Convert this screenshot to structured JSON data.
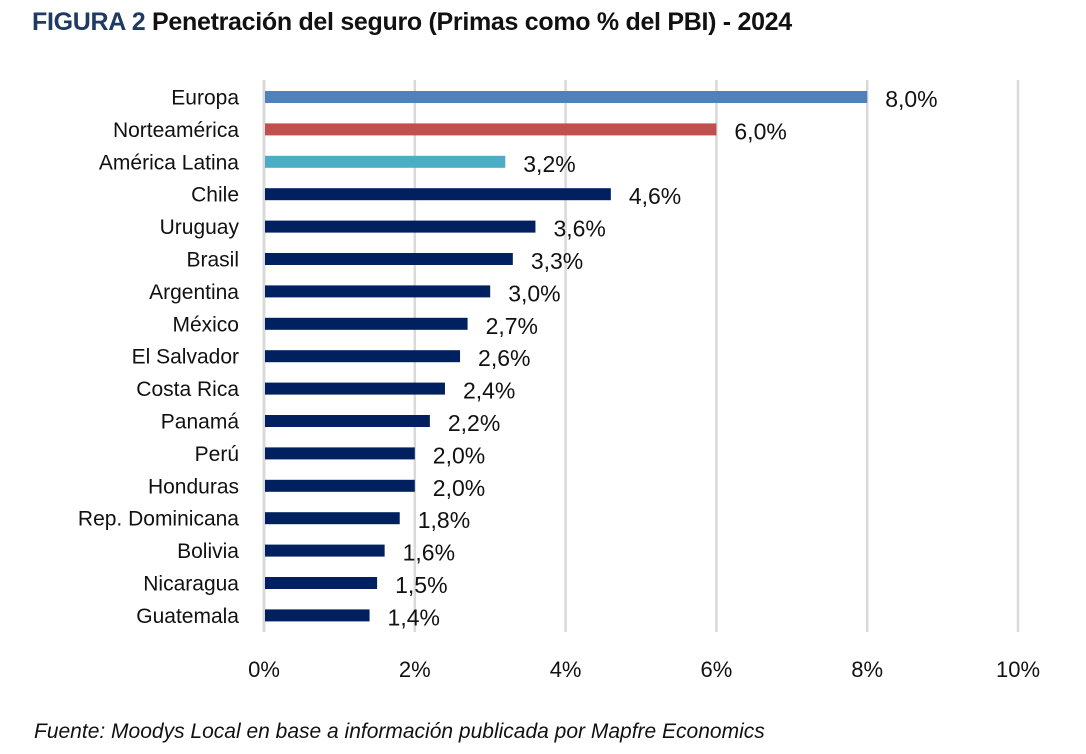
{
  "header": {
    "figure_label": "FIGURA 2",
    "title": "Penetración del seguro (Primas como % del PBI) - 2024"
  },
  "footer": {
    "source": "Fuente: Moodys Local en base a información publicada por Mapfre Economics"
  },
  "colors": {
    "europa": "#4f81bd",
    "norteamerica": "#c0504d",
    "america_latina": "#4bacc6",
    "countries": "#002060",
    "gridline": "#d9d9d9"
  },
  "chart_data": {
    "type": "bar",
    "orientation": "horizontal",
    "title": "FIGURA 2 Penetración del seguro (Primas como % del PBI) - 2024",
    "xlabel": "",
    "ylabel": "",
    "xlim": [
      0,
      10
    ],
    "x_ticks": [
      0,
      2,
      4,
      6,
      8,
      10
    ],
    "x_tick_labels": [
      "0%",
      "2%",
      "4%",
      "6%",
      "8%",
      "10%"
    ],
    "grid": "vertical",
    "legend": "none",
    "categories": [
      "Europa",
      "Norteamérica",
      "América Latina",
      "Chile",
      "Uruguay",
      "Brasil",
      "Argentina",
      "México",
      "El Salvador",
      "Costa Rica",
      "Panamá",
      "Perú",
      "Honduras",
      "Rep. Dominicana",
      "Bolivia",
      "Nicaragua",
      "Guatemala"
    ],
    "values": [
      8.0,
      6.0,
      3.2,
      4.6,
      3.6,
      3.3,
      3.0,
      2.7,
      2.6,
      2.4,
      2.2,
      2.0,
      2.0,
      1.8,
      1.6,
      1.5,
      1.4
    ],
    "value_labels": [
      "8,0%",
      "6,0%",
      "3,2%",
      "4,6%",
      "3,6%",
      "3,3%",
      "3,0%",
      "2,7%",
      "2,6%",
      "2,4%",
      "2,2%",
      "2,0%",
      "2,0%",
      "1,8%",
      "1,6%",
      "1,5%",
      "1,4%"
    ],
    "bar_colors": [
      "#4f81bd",
      "#c0504d",
      "#4bacc6",
      "#002060",
      "#002060",
      "#002060",
      "#002060",
      "#002060",
      "#002060",
      "#002060",
      "#002060",
      "#002060",
      "#002060",
      "#002060",
      "#002060",
      "#002060",
      "#002060"
    ],
    "unit": "%"
  }
}
